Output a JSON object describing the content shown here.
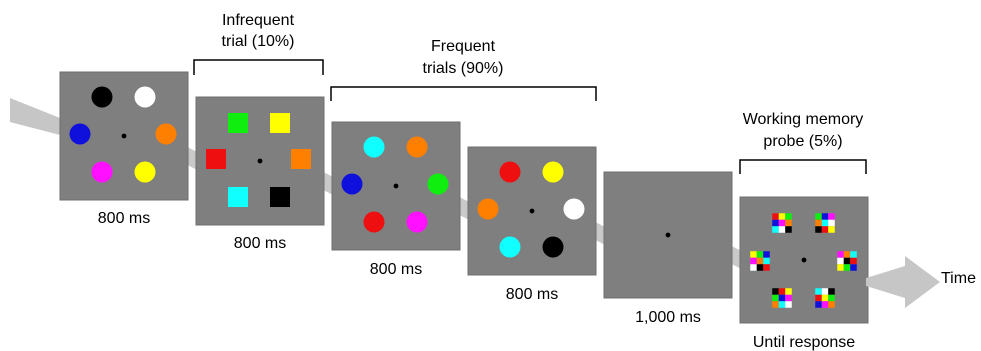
{
  "colors": {
    "panel": "#7f7f7f",
    "panel_border": "#6f6f6f",
    "arrow": "#c6c6c6",
    "connector": "#c9c9c9",
    "fixation": "#000000",
    "bracket": "#000000",
    "black": "#000000",
    "white": "#ffffff",
    "blue": "#1010dd",
    "orange": "#ff7f00",
    "magenta": "#ff10ff",
    "yellow": "#ffff00",
    "green": "#10ee10",
    "red": "#ee1010",
    "cyan": "#10ffff"
  },
  "panels": [
    {
      "id": "frequent-trial-1",
      "duration": "800 ms",
      "stimulus": "circles",
      "items": [
        "black",
        "white",
        "orange",
        "yellow",
        "magenta",
        "blue"
      ]
    },
    {
      "id": "infrequent-trial",
      "duration": "800 ms",
      "stimulus": "squares",
      "items": [
        "green",
        "yellow",
        "red",
        "orange",
        "cyan",
        "black"
      ]
    },
    {
      "id": "frequent-trial-2",
      "duration": "800 ms",
      "stimulus": "circles",
      "items": [
        "cyan",
        "orange",
        "green",
        "magenta",
        "red",
        "blue"
      ]
    },
    {
      "id": "frequent-trial-3",
      "duration": "800 ms",
      "stimulus": "circles",
      "items": [
        "red",
        "yellow",
        "white",
        "black",
        "cyan",
        "orange"
      ]
    },
    {
      "id": "blank-interval",
      "duration": "1,000 ms",
      "stimulus": "fixation-only",
      "items": []
    },
    {
      "id": "working-memory-probe",
      "duration": "Until response",
      "stimulus": "color-grids",
      "items": []
    }
  ],
  "brackets": [
    {
      "id": "infrequent",
      "line1": "Infrequent",
      "line2": "trial (10%)"
    },
    {
      "id": "frequent",
      "line1": "Frequent",
      "line2": "trials (90%)"
    },
    {
      "id": "probe",
      "line1": "Working memory",
      "line2": "probe (5%)"
    }
  ],
  "time_label": "Time",
  "probe_grid_colors": [
    "red",
    "yellow",
    "green",
    "blue",
    "magenta",
    "orange",
    "cyan",
    "white",
    "black"
  ]
}
